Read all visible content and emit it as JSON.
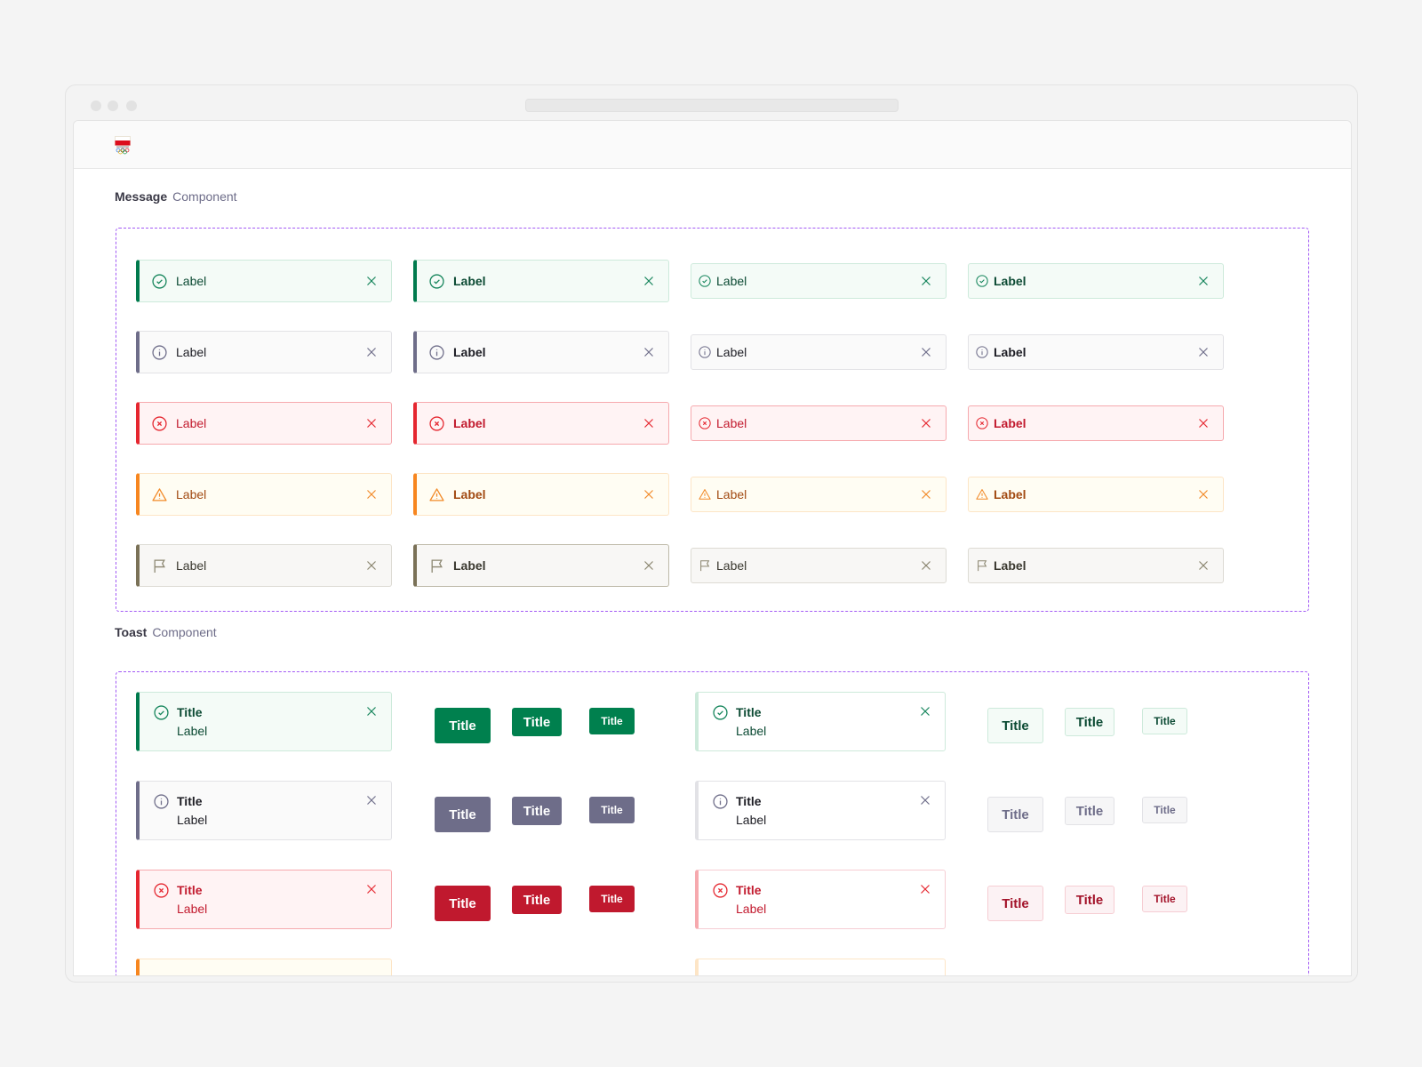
{
  "logo": {
    "text": "POLSKA",
    "colors": {
      "red": "#dc0d1d"
    }
  },
  "message_section": {
    "title": "Message",
    "subtitle": "Component"
  },
  "toast_section": {
    "title": "Toast",
    "subtitle": "Component"
  },
  "themes": {
    "success": {
      "icon": "check-circle-icon",
      "bar": "#007a4d",
      "bg": "#f4fbf7",
      "border": "#cdeadb",
      "text": "#0b4a33",
      "iconColor": "#13845a",
      "solid": "#00804e",
      "lightBg": "#f4fbf7",
      "lightBorder": "#cdeadb",
      "lightText": "#0b4a33",
      "softBar": "#cdeadb",
      "softBorder": "#cdeadb"
    },
    "info": {
      "icon": "info-circle-icon",
      "bar": "#6e6d89",
      "bg": "#fafafa",
      "border": "#e2e2e6",
      "text": "#1d1d24",
      "iconColor": "#6e6d89",
      "solid": "#6e6d89",
      "lightBg": "#f6f6f7",
      "lightBorder": "#e2e2e6",
      "lightText": "#6e6d89",
      "softBar": "#e2e2e6",
      "softBorder": "#e2e2e6"
    },
    "error": {
      "icon": "x-circle-icon",
      "bar": "#e5262f",
      "bg": "#fff3f4",
      "border": "#f6a9ae",
      "text": "#c21a2e",
      "iconColor": "#e5262f",
      "solid": "#c0192e",
      "lightBg": "#fcf2f4",
      "lightBorder": "#f6cdd3",
      "lightText": "#a3132a",
      "softBar": "#f6a9ae",
      "softBorder": "#f6cdd3"
    },
    "warning": {
      "icon": "warning-triangle-icon",
      "bar": "#f7861f",
      "bg": "#fffdf3",
      "border": "#fde5c6",
      "text": "#a24a12",
      "iconColor": "#f28a28",
      "solid": "#f7861f",
      "lightBg": "#fffdf3",
      "lightBorder": "#fde5c6",
      "lightText": "#a24a12",
      "softBar": "#fde5c6",
      "softBorder": "#fde5c6"
    },
    "neutral": {
      "icon": "flag-icon",
      "bar": "#7a7157",
      "bg": "#f8f7f5",
      "border": "#dddbd4",
      "text": "#3a382f",
      "iconColor": "#8b8670",
      "solid": "#7a7157",
      "lightBg": "#f8f7f5",
      "lightBorder": "#dddbd4",
      "lightText": "#3a382f",
      "softBar": "#dddbd4",
      "softBorder": "#dddbd4"
    }
  },
  "messages": [
    {
      "type": "success",
      "labels": [
        "Label",
        "Label",
        "Label",
        "Label"
      ]
    },
    {
      "type": "info",
      "labels": [
        "Label",
        "Label",
        "Label",
        "Label"
      ]
    },
    {
      "type": "error",
      "labels": [
        "Label",
        "Label",
        "Label",
        "Label"
      ]
    },
    {
      "type": "warning",
      "labels": [
        "Label",
        "Label",
        "Label",
        "Label"
      ]
    },
    {
      "type": "neutral",
      "labels": [
        "Label",
        "Label",
        "Label",
        "Label"
      ]
    }
  ],
  "toasts": [
    {
      "type": "success",
      "title": "Title",
      "label": "Label",
      "buttons": [
        "Title",
        "Title",
        "Title"
      ],
      "light_buttons": [
        "Title",
        "Title",
        "Title"
      ]
    },
    {
      "type": "info",
      "title": "Title",
      "label": "Label",
      "buttons": [
        "Title",
        "Title",
        "Title"
      ],
      "light_buttons": [
        "Title",
        "Title",
        "Title"
      ]
    },
    {
      "type": "error",
      "title": "Title",
      "label": "Label",
      "buttons": [
        "Title",
        "Title",
        "Title"
      ],
      "light_buttons": [
        "Title",
        "Title",
        "Title"
      ]
    },
    {
      "type": "warning"
    }
  ]
}
